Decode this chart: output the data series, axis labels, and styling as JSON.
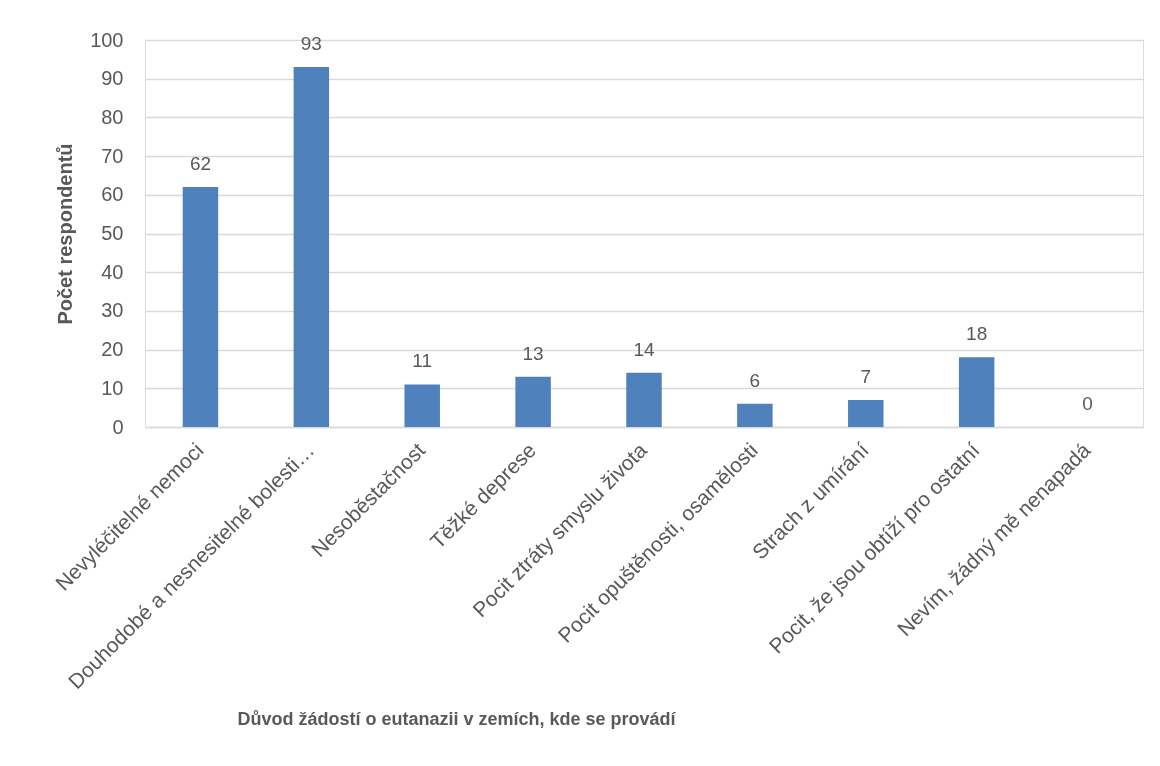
{
  "chart_data": {
    "type": "bar",
    "xlabel": "Důvod žádostí o eutanazii v zemích, kde se provádí",
    "ylabel": "Počet respondentů",
    "categories": [
      "Nevyléčitelné nemoci",
      "Douhodobé a nesnesitelné bolesti…",
      "Nesoběstačnost",
      "Těžké deprese",
      "Pocit ztráty smyslu života",
      "Pocit opuštěnosti, osamělosti",
      "Strach z umírání",
      "Pocit, že jsou obtíží pro ostatní",
      "Nevím, žádný mě nenapadá"
    ],
    "values": [
      62,
      93,
      11,
      13,
      14,
      6,
      7,
      18,
      0
    ],
    "color": "#4f81bd",
    "ylim": [
      0,
      100
    ],
    "yticks": [
      0,
      10,
      20,
      30,
      40,
      50,
      60,
      70,
      80,
      90,
      100
    ],
    "grid": "y",
    "data_labels": true
  }
}
